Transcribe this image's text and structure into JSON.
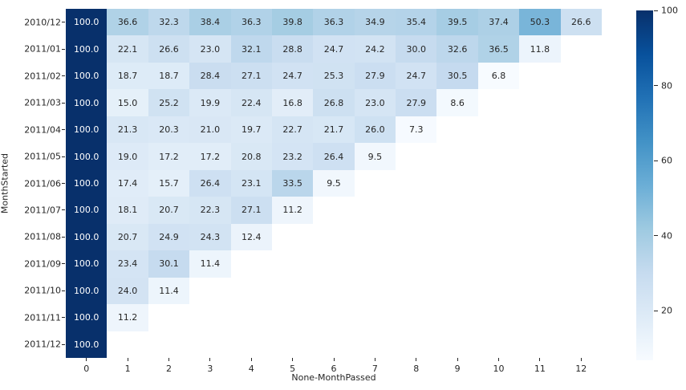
{
  "chart_data": {
    "type": "heatmap",
    "title": "",
    "xlabel": "None-MonthPassed",
    "ylabel": "MonthStarted",
    "x_categories": [
      "0",
      "1",
      "2",
      "3",
      "4",
      "5",
      "6",
      "7",
      "8",
      "9",
      "10",
      "11",
      "12"
    ],
    "y_categories": [
      "2010/12",
      "2011/01",
      "2011/02",
      "2011/03",
      "2011/04",
      "2011/05",
      "2011/06",
      "2011/07",
      "2011/08",
      "2011/09",
      "2011/10",
      "2011/11",
      "2011/12"
    ],
    "rows": [
      [
        100.0,
        36.6,
        32.3,
        38.4,
        36.3,
        39.8,
        36.3,
        34.9,
        35.4,
        39.5,
        37.4,
        50.3,
        26.6
      ],
      [
        100.0,
        22.1,
        26.6,
        23.0,
        32.1,
        28.8,
        24.7,
        24.2,
        30.0,
        32.6,
        36.5,
        11.8,
        null
      ],
      [
        100.0,
        18.7,
        18.7,
        28.4,
        27.1,
        24.7,
        25.3,
        27.9,
        24.7,
        30.5,
        6.8,
        null,
        null
      ],
      [
        100.0,
        15.0,
        25.2,
        19.9,
        22.4,
        16.8,
        26.8,
        23.0,
        27.9,
        8.6,
        null,
        null,
        null
      ],
      [
        100.0,
        21.3,
        20.3,
        21.0,
        19.7,
        22.7,
        21.7,
        26.0,
        7.3,
        null,
        null,
        null,
        null
      ],
      [
        100.0,
        19.0,
        17.2,
        17.2,
        20.8,
        23.2,
        26.4,
        9.5,
        null,
        null,
        null,
        null,
        null
      ],
      [
        100.0,
        17.4,
        15.7,
        26.4,
        23.1,
        33.5,
        9.5,
        null,
        null,
        null,
        null,
        null,
        null
      ],
      [
        100.0,
        18.1,
        20.7,
        22.3,
        27.1,
        11.2,
        null,
        null,
        null,
        null,
        null,
        null,
        null
      ],
      [
        100.0,
        20.7,
        24.9,
        24.3,
        12.4,
        null,
        null,
        null,
        null,
        null,
        null,
        null,
        null
      ],
      [
        100.0,
        23.4,
        30.1,
        11.4,
        null,
        null,
        null,
        null,
        null,
        null,
        null,
        null,
        null
      ],
      [
        100.0,
        24.0,
        11.4,
        null,
        null,
        null,
        null,
        null,
        null,
        null,
        null,
        null,
        null
      ],
      [
        100.0,
        11.2,
        null,
        null,
        null,
        null,
        null,
        null,
        null,
        null,
        null,
        null,
        null
      ],
      [
        100.0,
        null,
        null,
        null,
        null,
        null,
        null,
        null,
        null,
        null,
        null,
        null,
        null
      ]
    ],
    "annot_decimals": 1,
    "colormap": "Blues",
    "colormap_stops": [
      "#f7fbff",
      "#deebf7",
      "#c6dbef",
      "#9ecae1",
      "#6baed6",
      "#4292c6",
      "#2171b5",
      "#08519c",
      "#08306b"
    ],
    "vmin": 6.8,
    "vmax": 100,
    "colorbar_ticks": [
      100,
      80,
      60,
      40,
      20
    ],
    "legend_position": "right",
    "grid": false,
    "empty_cell_color": "#ffffff",
    "annot_color_dark": "#262626",
    "annot_color_light": "#ffffff",
    "tick_color": "#262626"
  }
}
